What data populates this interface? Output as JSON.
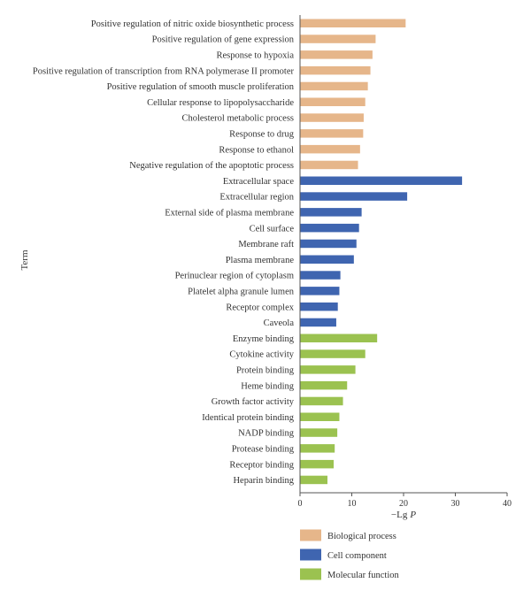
{
  "chart_data": {
    "type": "bar",
    "orientation": "horizontal",
    "title": "",
    "xlabel": "−Lg",
    "xlabel_italic": "P",
    "ylabel": "Term",
    "xlim": [
      0,
      40
    ],
    "xticks": [
      "0",
      "10",
      "20",
      "30",
      "40"
    ],
    "grid": false,
    "legend_position": "bottom",
    "categories": [
      "Positive regulation of nitric oxide biosynthetic process",
      "Positive regulation of gene expression",
      "Response to hypoxia",
      "Positive regulation of transcription from RNA polymerase II promoter",
      "Positive regulation of smooth muscle proliferation",
      "Cellular response to lipopolysaccharide",
      "Cholesterol metabolic process",
      "Response to drug",
      "Response to ethanol",
      "Negative regulation of the apoptotic process",
      "Extracellular space",
      "Extracellular region",
      "External side of plasma membrane",
      "Cell surface",
      "Membrane raft",
      "Plasma membrane",
      "Perinuclear region of cytoplasm",
      "Platelet alpha granule lumen",
      "Receptor complex",
      "Caveola",
      "Enzyme binding",
      "Cytokine activity",
      "Protein binding",
      "Heme binding",
      "Growth factor activity",
      "Identical protein binding",
      "NADP binding",
      "Protease binding",
      "Receptor binding",
      "Heparin binding"
    ],
    "values": [
      20.4,
      14.6,
      14.0,
      13.6,
      13.1,
      12.6,
      12.3,
      12.2,
      11.6,
      11.2,
      31.3,
      20.7,
      11.9,
      11.4,
      10.9,
      10.4,
      7.8,
      7.6,
      7.3,
      7.0,
      14.9,
      12.6,
      10.7,
      9.1,
      8.3,
      7.6,
      7.2,
      6.7,
      6.5,
      5.3
    ],
    "groups": [
      "Biological process",
      "Biological process",
      "Biological process",
      "Biological process",
      "Biological process",
      "Biological process",
      "Biological process",
      "Biological process",
      "Biological process",
      "Biological process",
      "Cell component",
      "Cell component",
      "Cell component",
      "Cell component",
      "Cell component",
      "Cell component",
      "Cell component",
      "Cell component",
      "Cell component",
      "Cell component",
      "Molecular function",
      "Molecular function",
      "Molecular function",
      "Molecular function",
      "Molecular function",
      "Molecular function",
      "Molecular function",
      "Molecular function",
      "Molecular function",
      "Molecular function"
    ],
    "legend": [
      {
        "name": "Biological process",
        "color": "#E6B68A"
      },
      {
        "name": "Cell component",
        "color": "#3F65B0"
      },
      {
        "name": "Molecular function",
        "color": "#9BC250"
      }
    ]
  }
}
